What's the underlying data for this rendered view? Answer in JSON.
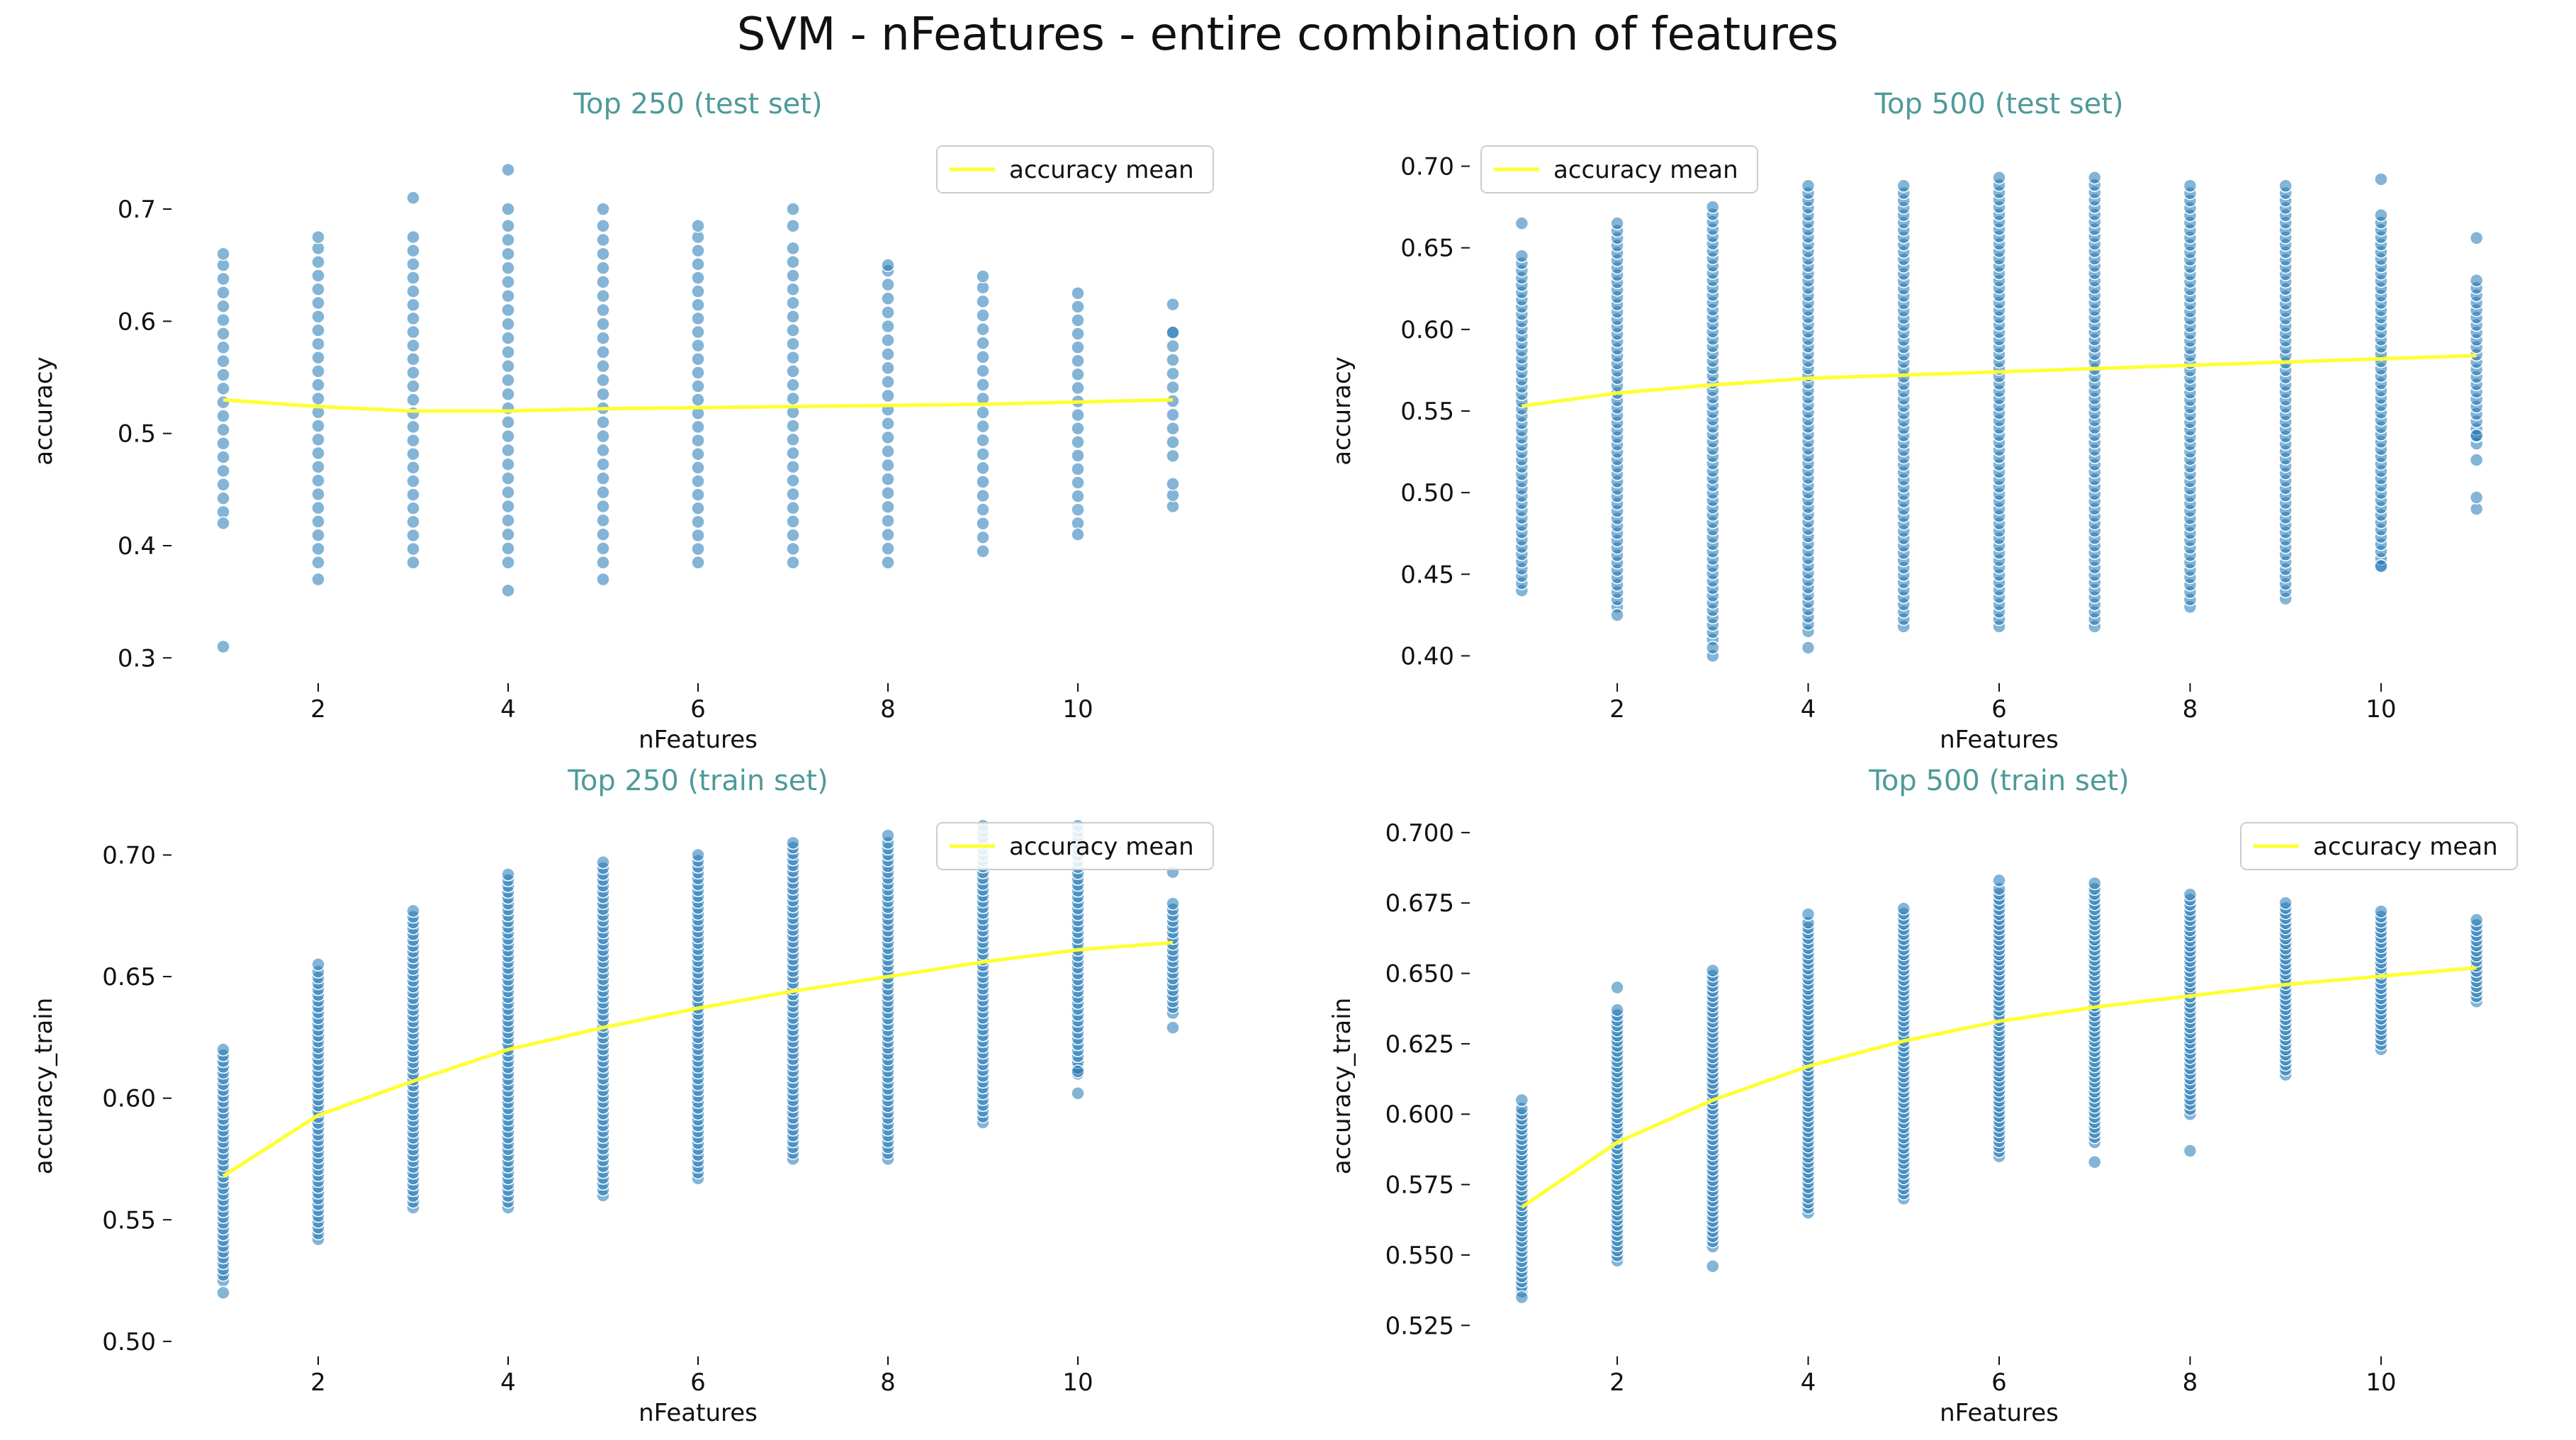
{
  "figure": {
    "suptitle": "SVM - nFeatures - entire combination of features"
  },
  "colors": {
    "points": "#1f77b4",
    "mean_line": "#ffff33",
    "title": "#4e9a9a",
    "text": "#111111"
  },
  "chart_data": [
    {
      "type": "scatter",
      "title": "Top 250 (test set)",
      "xlabel": "nFeatures",
      "ylabel": "accuracy",
      "xlim": [
        0.5,
        11.5
      ],
      "ylim": [
        0.28,
        0.76
      ],
      "xticks": [
        2,
        4,
        6,
        8,
        10
      ],
      "yticks": [
        0.3,
        0.4,
        0.5,
        0.6,
        0.7
      ],
      "ytick_labels": [
        "0.3",
        "0.4",
        "0.5",
        "0.6",
        "0.7"
      ],
      "legend": {
        "label": "accuracy mean",
        "position": "top-right"
      },
      "x": [
        1,
        2,
        3,
        4,
        5,
        6,
        7,
        8,
        9,
        10,
        11
      ],
      "point_step": 0.0123,
      "dense_ranges": [
        [
          0.43,
          0.65
        ],
        [
          0.385,
          0.665
        ],
        [
          0.385,
          0.675
        ],
        [
          0.385,
          0.685
        ],
        [
          0.385,
          0.685
        ],
        [
          0.385,
          0.675
        ],
        [
          0.385,
          0.665
        ],
        [
          0.385,
          0.645
        ],
        [
          0.395,
          0.63
        ],
        [
          0.42,
          0.625
        ],
        [
          0.48,
          0.59
        ]
      ],
      "outliers": [
        [
          0.31,
          0.42,
          0.66
        ],
        [
          0.37,
          0.675
        ],
        [
          0.71
        ],
        [
          0.36,
          0.735,
          0.7
        ],
        [
          0.37,
          0.7
        ],
        [
          0.685
        ],
        [
          0.685,
          0.7
        ],
        [
          0.65
        ],
        [
          0.64
        ],
        [
          0.41
        ],
        [
          0.435,
          0.445,
          0.455,
          0.615,
          0.59
        ]
      ],
      "mean": [
        0.53,
        0.524,
        0.52,
        0.52,
        0.522,
        0.523,
        0.524,
        0.525,
        0.526,
        0.528,
        0.53
      ]
    },
    {
      "type": "scatter",
      "title": "Top 500 (test set)",
      "xlabel": "nFeatures",
      "ylabel": "accuracy",
      "xlim": [
        0.5,
        11.5
      ],
      "ylim": [
        0.385,
        0.715
      ],
      "xticks": [
        2,
        4,
        6,
        8,
        10
      ],
      "yticks": [
        0.4,
        0.45,
        0.5,
        0.55,
        0.6,
        0.65,
        0.7
      ],
      "ytick_labels": [
        "0.40",
        "0.45",
        "0.50",
        "0.55",
        "0.60",
        "0.65",
        "0.70"
      ],
      "legend": {
        "label": "accuracy mean",
        "position": "top-left"
      },
      "x": [
        1,
        2,
        3,
        4,
        5,
        6,
        7,
        8,
        9,
        10,
        11
      ],
      "point_step": 0.0045,
      "dense_ranges": [
        [
          0.44,
          0.645
        ],
        [
          0.43,
          0.665
        ],
        [
          0.41,
          0.675
        ],
        [
          0.415,
          0.688
        ],
        [
          0.418,
          0.688
        ],
        [
          0.418,
          0.693
        ],
        [
          0.418,
          0.693
        ],
        [
          0.43,
          0.688
        ],
        [
          0.435,
          0.688
        ],
        [
          0.455,
          0.67
        ],
        [
          0.53,
          0.63
        ]
      ],
      "outliers": [
        [
          0.665
        ],
        [
          0.425
        ],
        [
          0.4,
          0.405
        ],
        [
          0.405
        ],
        [],
        [],
        [],
        [],
        [],
        [
          0.692,
          0.455
        ],
        [
          0.656,
          0.49,
          0.497,
          0.52,
          0.535
        ]
      ],
      "mean": [
        0.553,
        0.561,
        0.566,
        0.57,
        0.572,
        0.574,
        0.576,
        0.578,
        0.58,
        0.582,
        0.584
      ]
    },
    {
      "type": "scatter",
      "title": "Top 250 (train set)",
      "xlabel": "nFeatures",
      "ylabel": "accuracy_train",
      "xlim": [
        0.5,
        11.5
      ],
      "ylim": [
        0.495,
        0.715
      ],
      "xticks": [
        2,
        4,
        6,
        8,
        10
      ],
      "yticks": [
        0.5,
        0.55,
        0.6,
        0.65,
        0.7
      ],
      "ytick_labels": [
        "0.50",
        "0.55",
        "0.60",
        "0.65",
        "0.70"
      ],
      "legend": {
        "label": "accuracy mean",
        "position": "top-right"
      },
      "x": [
        1,
        2,
        3,
        4,
        5,
        6,
        7,
        8,
        9,
        10,
        11
      ],
      "point_step": 0.0024,
      "dense_ranges": [
        [
          0.525,
          0.62
        ],
        [
          0.542,
          0.652
        ],
        [
          0.555,
          0.677
        ],
        [
          0.555,
          0.692
        ],
        [
          0.56,
          0.697
        ],
        [
          0.567,
          0.7
        ],
        [
          0.575,
          0.703
        ],
        [
          0.575,
          0.705
        ],
        [
          0.59,
          0.712
        ],
        [
          0.61,
          0.712
        ],
        [
          0.635,
          0.68
        ]
      ],
      "outliers": [
        [
          0.52
        ],
        [
          0.655
        ],
        [],
        [],
        [],
        [],
        [
          0.705
        ],
        [
          0.708
        ],
        [],
        [
          0.602,
          0.611
        ],
        [
          0.629,
          0.693
        ]
      ],
      "mean": [
        0.568,
        0.593,
        0.607,
        0.62,
        0.629,
        0.637,
        0.644,
        0.65,
        0.656,
        0.661,
        0.664
      ]
    },
    {
      "type": "scatter",
      "title": "Top 500 (train set)",
      "xlabel": "nFeatures",
      "ylabel": "accuracy_train",
      "xlim": [
        0.5,
        11.5
      ],
      "ylim": [
        0.515,
        0.705
      ],
      "xticks": [
        2,
        4,
        6,
        8,
        10
      ],
      "yticks": [
        0.525,
        0.55,
        0.575,
        0.6,
        0.625,
        0.65,
        0.675,
        0.7
      ],
      "ytick_labels": [
        "0.525",
        "0.550",
        "0.575",
        "0.600",
        "0.625",
        "0.650",
        "0.675",
        "0.700"
      ],
      "legend": {
        "label": "accuracy mean",
        "position": "top-right"
      },
      "x": [
        1,
        2,
        3,
        4,
        5,
        6,
        7,
        8,
        9,
        10,
        11
      ],
      "point_step": 0.0018,
      "dense_ranges": [
        [
          0.537,
          0.602
        ],
        [
          0.548,
          0.637
        ],
        [
          0.553,
          0.651
        ],
        [
          0.565,
          0.668
        ],
        [
          0.57,
          0.673
        ],
        [
          0.585,
          0.68
        ],
        [
          0.59,
          0.68
        ],
        [
          0.6,
          0.678
        ],
        [
          0.614,
          0.675
        ],
        [
          0.623,
          0.672
        ],
        [
          0.64,
          0.669
        ]
      ],
      "outliers": [
        [
          0.535,
          0.605
        ],
        [
          0.645
        ],
        [
          0.546
        ],
        [
          0.671
        ],
        [],
        [
          0.683
        ],
        [
          0.583,
          0.682
        ],
        [
          0.587
        ],
        [],
        [],
        []
      ],
      "mean": [
        0.567,
        0.59,
        0.605,
        0.617,
        0.626,
        0.633,
        0.638,
        0.642,
        0.646,
        0.649,
        0.652
      ]
    }
  ]
}
